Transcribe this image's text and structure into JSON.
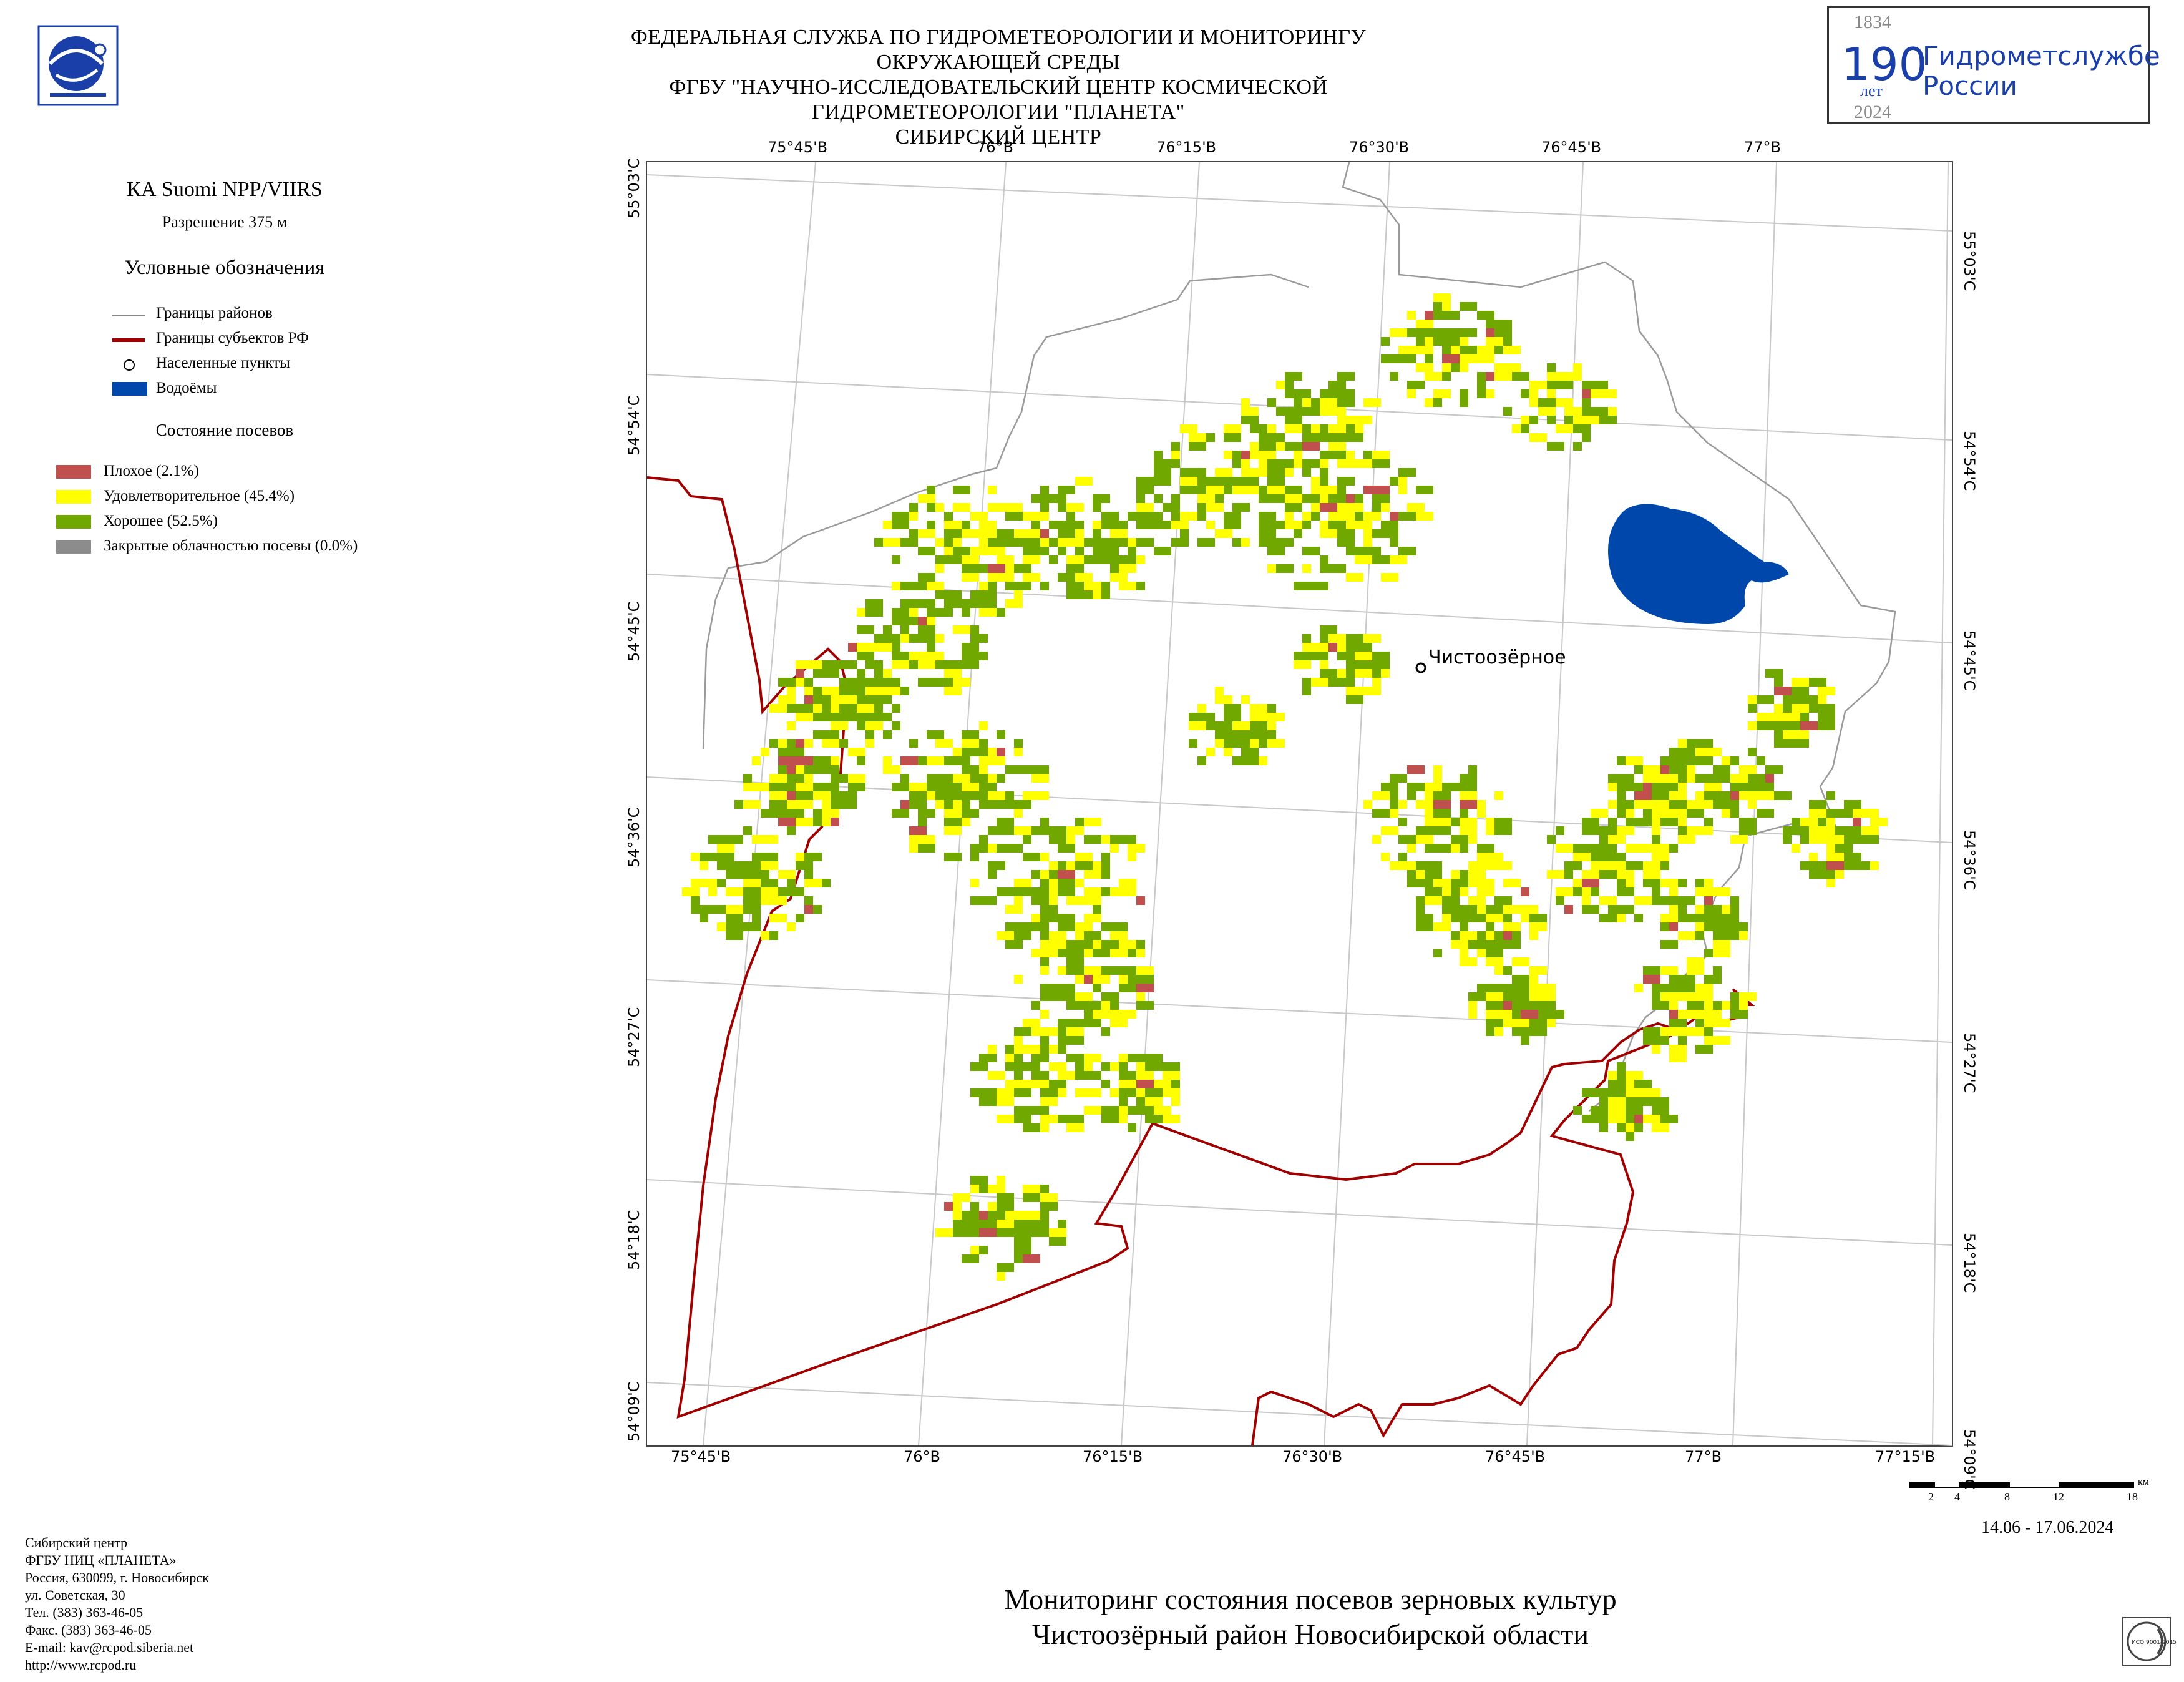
{
  "header": {
    "line1": "ФЕДЕРАЛЬНАЯ СЛУЖБА ПО ГИДРОМЕТЕОРОЛОГИИ И МОНИТОРИНГУ ОКРУЖАЮЩЕЙ СРЕДЫ",
    "line2": "ФГБУ \"НАУЧНО-ИССЛЕДОВАТЕЛЬСКИЙ ЦЕНТР КОСМИЧЕСКОЙ ГИДРОМЕТЕОРОЛОГИИ \"ПЛАНЕТА\"",
    "line3": "СИБИРСКИЙ ЦЕНТР"
  },
  "anniversary": {
    "year_start": "1834",
    "number": "190",
    "years_word": "лет",
    "year_end": "2024",
    "text_line1": "Гидрометслужбе",
    "text_line2": "России",
    "color": "#1a3fa8"
  },
  "legend": {
    "satellite": "КА Suomi NPP/VIIRS",
    "resolution": "Разрешение 375 м",
    "title": "Условные обозначения",
    "items": [
      {
        "label": "Границы районов",
        "color": "#8a8a8a"
      },
      {
        "label": "Границы субъектов РФ",
        "color": "#a00000"
      },
      {
        "label": "Населенные пункты",
        "color": "#000000"
      },
      {
        "label": "Водоёмы",
        "color": "#0047ab"
      }
    ],
    "crop_title": "Состояние посевов",
    "crop_items": [
      {
        "label": "Плохое (2.1%)",
        "color": "#c0504d"
      },
      {
        "label": "Удовлетворительное (45.4%)",
        "color": "#ffff00"
      },
      {
        "label": "Хорошее (52.5%)",
        "color": "#70a800"
      },
      {
        "label": "Закрытые облачностью посевы (0.0%)",
        "color": "#8c8c8c"
      }
    ]
  },
  "map": {
    "top_ticks": [
      "75°45'В",
      "76°В",
      "76°15'В",
      "76°30'В",
      "76°45'В",
      "77°В"
    ],
    "bottom_ticks": [
      "75°45'В",
      "76°В",
      "76°15'В",
      "76°30'В",
      "76°45'В",
      "77°В",
      "77°15'В"
    ],
    "left_ticks": [
      "55°03'С",
      "54°54'С",
      "54°45'С",
      "54°36'С",
      "54°27'С",
      "54°18'С",
      "54°09'С"
    ],
    "right_ticks": [
      "55°03'С",
      "54°54'С",
      "54°45'С",
      "54°36'С",
      "54°27'С",
      "54°18'С",
      "54°09'С"
    ],
    "settlement": "Чистоозёрное",
    "scale_labels": [
      "2",
      "4",
      "8",
      "12",
      "18"
    ],
    "scale_unit": "км"
  },
  "footer": {
    "contacts": [
      "Сибирский центр",
      "ФГБУ НИЦ «ПЛАНЕТА»",
      "Россия, 630099, г. Новосибирск",
      "ул. Советская, 30",
      "Тел. (383) 363-46-05",
      "Факс. (383) 363-46-05",
      "E-mail: kav@rcpod.siberia.net",
      "http://www.rcpod.ru"
    ],
    "date_range": "14.06 - 17.06.2024",
    "title_line1": "Мониторинг состояния посевов зерновых культур",
    "title_line2": "Чистоозёрный район Новосибирской области",
    "iso_text": "ИСО 9001-2015"
  }
}
